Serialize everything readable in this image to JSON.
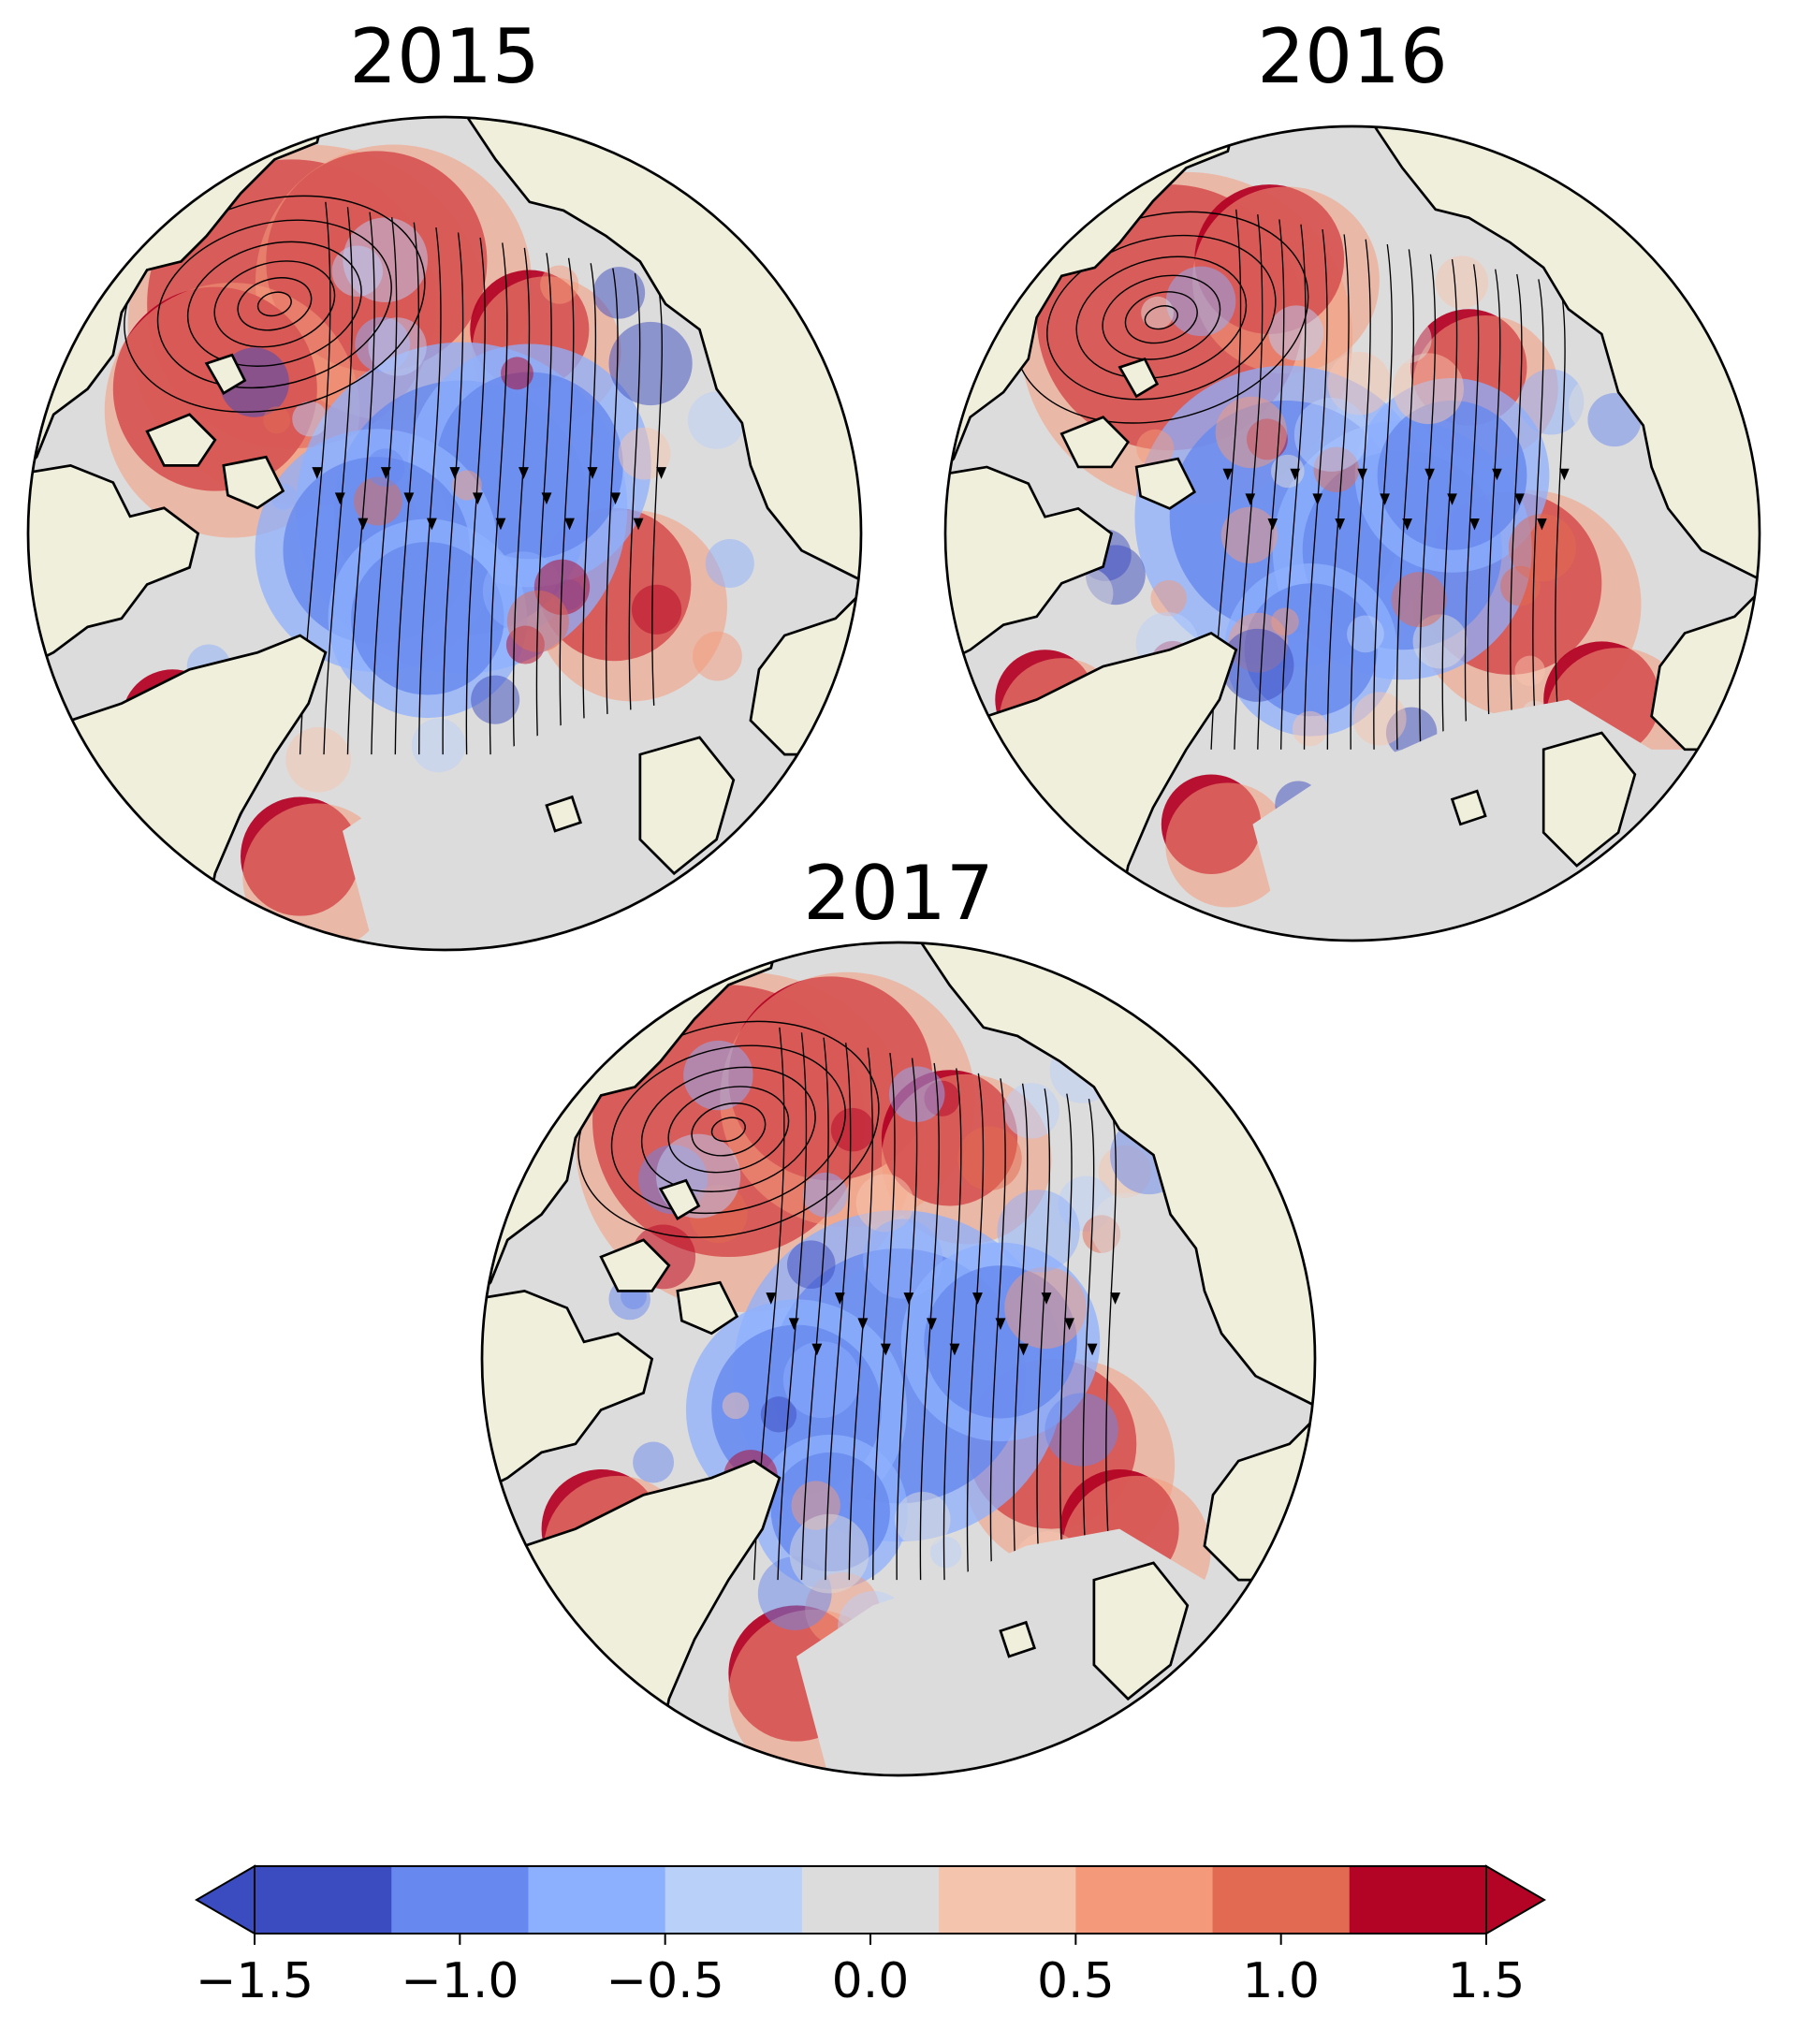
{
  "figure": {
    "panels": [
      {
        "id": "p2015",
        "title": "2015"
      },
      {
        "id": "p2016",
        "title": "2016"
      },
      {
        "id": "p2017",
        "title": "2017"
      }
    ]
  },
  "colors": {
    "land": "#efefdc",
    "ocean_outside": "#dcdcdc",
    "coast": "#000000"
  },
  "colorbar": {
    "colormap": "coolwarm",
    "range": [
      -1.5,
      1.5
    ],
    "extend": "both",
    "bins": [
      "#3b4cc0",
      "#6788ee",
      "#8db0fe",
      "#b9d0f9",
      "#dddcdc",
      "#f5c4ad",
      "#f49a7b",
      "#e26952",
      "#b40426"
    ],
    "ticks": [
      {
        "value": -1.5,
        "label": "−1.5"
      },
      {
        "value": -1.0,
        "label": "−1.0"
      },
      {
        "value": -0.5,
        "label": "−0.5"
      },
      {
        "value": 0.0,
        "label": "0.0"
      },
      {
        "value": 0.5,
        "label": "0.5"
      },
      {
        "value": 1.0,
        "label": "1.0"
      },
      {
        "value": 1.5,
        "label": "1.5"
      }
    ]
  }
}
